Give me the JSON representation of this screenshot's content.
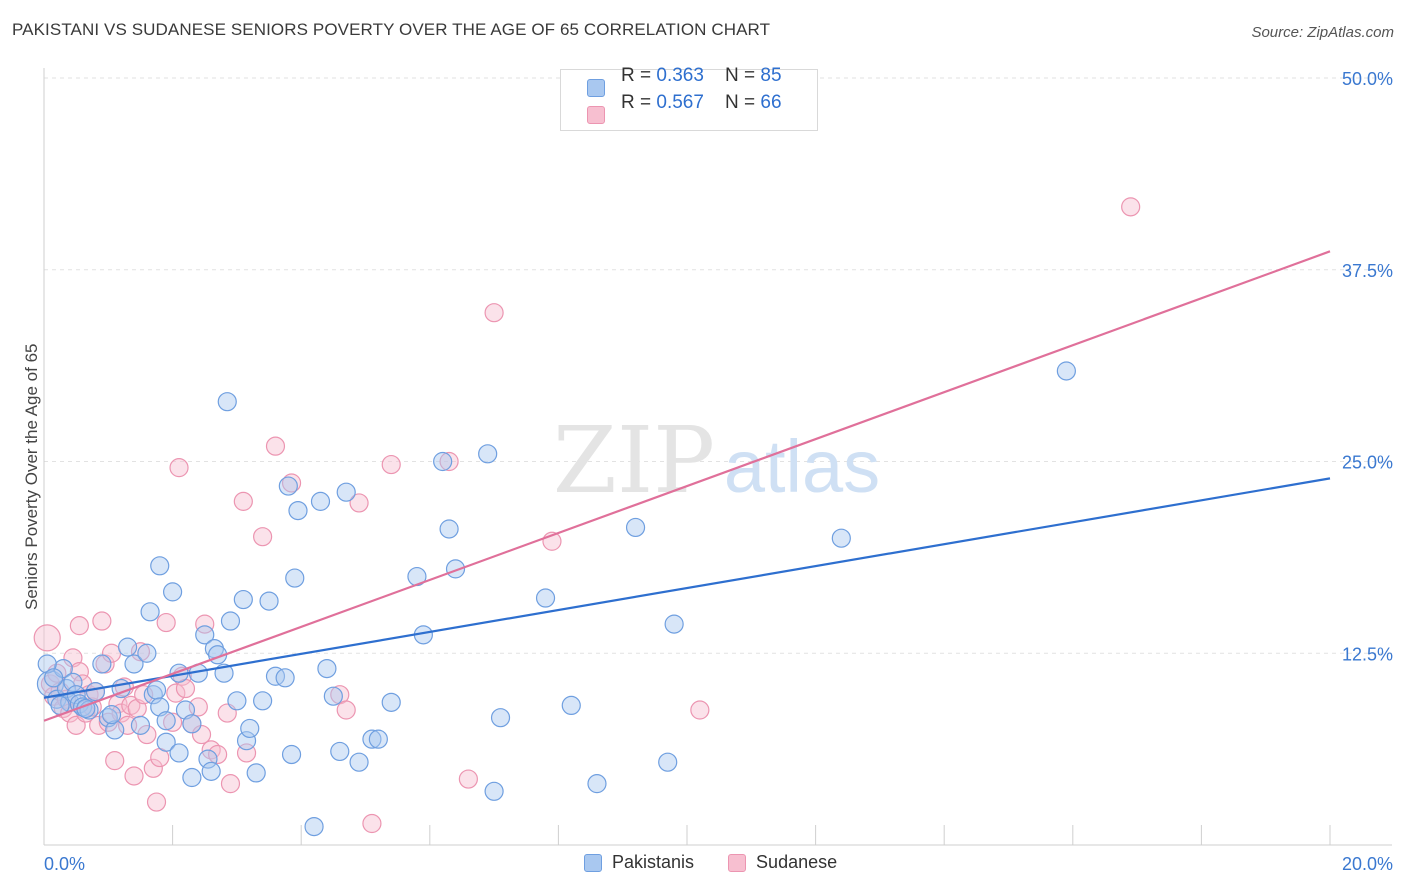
{
  "title": "PAKISTANI VS SUDANESE SENIORS POVERTY OVER THE AGE OF 65 CORRELATION CHART",
  "source": "Source: ZipAtlas.com",
  "watermark": {
    "zip": "ZIP",
    "atlas": "atlas"
  },
  "legend_top": [
    {
      "r_label": "R = ",
      "r_value": "0.363",
      "n_label": "N = ",
      "n_value": "85"
    },
    {
      "r_label": "R = ",
      "r_value": "0.567",
      "n_label": "N = ",
      "n_value": "66"
    }
  ],
  "chart_data": {
    "type": "scatter",
    "xlabel": "",
    "ylabel": "Seniors Poverty Over the Age of 65",
    "xlim": [
      0,
      20
    ],
    "ylim": [
      0,
      50
    ],
    "x_tick_labels": [
      "0.0%",
      "20.0%"
    ],
    "y_ticks": [
      12.5,
      25,
      37.5,
      50
    ],
    "y_tick_labels": [
      "12.5%",
      "25.0%",
      "37.5%",
      "50.0%"
    ],
    "grid": true,
    "legend_position": "bottom",
    "colors": {
      "pakistanis_fill": "#a9c8f0",
      "pakistanis_stroke": "#6f9fe0",
      "pakistanis_line": "#2e6fcf",
      "sudanese_fill": "#f7bfd0",
      "sudanese_stroke": "#ec95b1",
      "sudanese_line": "#e0709a",
      "axis_text": "#3a78d0"
    },
    "series": [
      {
        "name": "Pakistanis",
        "trend": {
          "x": [
            0,
            20
          ],
          "y": [
            9.6,
            23.9
          ]
        },
        "points": [
          [
            0.1,
            10.5
          ],
          [
            0.2,
            9.5
          ],
          [
            0.3,
            11.5
          ],
          [
            0.35,
            10.2
          ],
          [
            0.4,
            9.3
          ],
          [
            0.45,
            10.6
          ],
          [
            0.5,
            9.8
          ],
          [
            0.55,
            9.2
          ],
          [
            0.6,
            9.0
          ],
          [
            0.7,
            8.8
          ],
          [
            0.8,
            10.0
          ],
          [
            0.9,
            11.8
          ],
          [
            1.0,
            8.3
          ],
          [
            1.1,
            7.5
          ],
          [
            1.2,
            10.2
          ],
          [
            1.3,
            12.9
          ],
          [
            1.4,
            11.8
          ],
          [
            1.5,
            7.8
          ],
          [
            1.6,
            12.5
          ],
          [
            1.65,
            15.2
          ],
          [
            1.7,
            9.8
          ],
          [
            1.75,
            10.1
          ],
          [
            1.8,
            9.0
          ],
          [
            1.8,
            18.2
          ],
          [
            1.9,
            6.7
          ],
          [
            1.9,
            8.1
          ],
          [
            2.0,
            16.5
          ],
          [
            2.1,
            11.2
          ],
          [
            2.1,
            6.0
          ],
          [
            2.2,
            8.8
          ],
          [
            2.3,
            4.4
          ],
          [
            2.3,
            7.9
          ],
          [
            2.4,
            11.2
          ],
          [
            2.5,
            13.7
          ],
          [
            2.55,
            5.6
          ],
          [
            2.6,
            4.8
          ],
          [
            2.65,
            12.8
          ],
          [
            2.7,
            12.4
          ],
          [
            2.8,
            11.2
          ],
          [
            2.85,
            28.9
          ],
          [
            2.9,
            14.6
          ],
          [
            3.0,
            9.4
          ],
          [
            3.1,
            16.0
          ],
          [
            3.15,
            6.8
          ],
          [
            3.2,
            7.6
          ],
          [
            3.3,
            4.7
          ],
          [
            3.4,
            9.4
          ],
          [
            3.5,
            15.9
          ],
          [
            3.6,
            11.0
          ],
          [
            3.75,
            10.9
          ],
          [
            3.8,
            23.4
          ],
          [
            3.85,
            5.9
          ],
          [
            3.9,
            17.4
          ],
          [
            3.95,
            21.8
          ],
          [
            4.2,
            1.2
          ],
          [
            4.3,
            22.4
          ],
          [
            4.4,
            11.5
          ],
          [
            4.5,
            9.7
          ],
          [
            4.6,
            6.1
          ],
          [
            4.7,
            23.0
          ],
          [
            4.9,
            5.4
          ],
          [
            5.1,
            6.9
          ],
          [
            5.2,
            6.9
          ],
          [
            5.4,
            9.3
          ],
          [
            5.8,
            17.5
          ],
          [
            5.9,
            13.7
          ],
          [
            6.2,
            25.0
          ],
          [
            6.3,
            20.6
          ],
          [
            6.4,
            18.0
          ],
          [
            6.9,
            25.5
          ],
          [
            7.0,
            3.5
          ],
          [
            7.1,
            8.3
          ],
          [
            7.8,
            16.1
          ],
          [
            8.2,
            9.1
          ],
          [
            8.6,
            4.0
          ],
          [
            9.2,
            20.7
          ],
          [
            9.7,
            5.4
          ],
          [
            9.8,
            14.4
          ],
          [
            12.4,
            20.0
          ],
          [
            15.9,
            30.9
          ],
          [
            0.05,
            11.8
          ],
          [
            0.15,
            10.9
          ],
          [
            0.25,
            9.1
          ],
          [
            0.65,
            8.9
          ],
          [
            1.05,
            8.5
          ]
        ]
      },
      {
        "name": "Sudanese",
        "trend": {
          "x": [
            0,
            20
          ],
          "y": [
            8.1,
            38.7
          ]
        },
        "points": [
          [
            0.05,
            13.5
          ],
          [
            0.1,
            10.5
          ],
          [
            0.15,
            9.7
          ],
          [
            0.2,
            11.2
          ],
          [
            0.25,
            10.0
          ],
          [
            0.3,
            8.9
          ],
          [
            0.35,
            9.5
          ],
          [
            0.4,
            8.6
          ],
          [
            0.45,
            12.2
          ],
          [
            0.5,
            7.8
          ],
          [
            0.55,
            11.3
          ],
          [
            0.6,
            10.5
          ],
          [
            0.65,
            8.6
          ],
          [
            0.7,
            9.8
          ],
          [
            0.75,
            9.0
          ],
          [
            0.8,
            10.0
          ],
          [
            0.85,
            7.8
          ],
          [
            0.9,
            14.6
          ],
          [
            0.95,
            11.8
          ],
          [
            1.0,
            8.0
          ],
          [
            1.05,
            12.5
          ],
          [
            1.1,
            5.5
          ],
          [
            1.15,
            9.2
          ],
          [
            1.2,
            8.6
          ],
          [
            1.25,
            10.3
          ],
          [
            1.3,
            7.8
          ],
          [
            1.35,
            9.1
          ],
          [
            1.4,
            4.5
          ],
          [
            1.45,
            8.9
          ],
          [
            1.5,
            12.6
          ],
          [
            1.55,
            9.8
          ],
          [
            1.6,
            7.2
          ],
          [
            1.7,
            5.0
          ],
          [
            1.75,
            2.8
          ],
          [
            1.8,
            5.7
          ],
          [
            1.9,
            14.5
          ],
          [
            2.0,
            8.0
          ],
          [
            2.05,
            9.9
          ],
          [
            2.1,
            24.6
          ],
          [
            2.15,
            11.0
          ],
          [
            2.2,
            10.2
          ],
          [
            2.3,
            7.9
          ],
          [
            2.4,
            9.0
          ],
          [
            2.45,
            7.2
          ],
          [
            2.5,
            14.4
          ],
          [
            2.6,
            6.2
          ],
          [
            2.7,
            5.9
          ],
          [
            2.85,
            8.6
          ],
          [
            2.9,
            4.0
          ],
          [
            3.15,
            6.0
          ],
          [
            3.1,
            22.4
          ],
          [
            3.4,
            20.1
          ],
          [
            3.6,
            26.0
          ],
          [
            3.85,
            23.6
          ],
          [
            4.6,
            9.8
          ],
          [
            4.7,
            8.8
          ],
          [
            4.9,
            22.3
          ],
          [
            5.1,
            1.4
          ],
          [
            5.4,
            24.8
          ],
          [
            6.3,
            25.0
          ],
          [
            6.6,
            4.3
          ],
          [
            7.0,
            34.7
          ],
          [
            7.9,
            19.8
          ],
          [
            10.2,
            8.8
          ],
          [
            16.9,
            41.6
          ],
          [
            0.55,
            14.3
          ]
        ]
      }
    ]
  }
}
